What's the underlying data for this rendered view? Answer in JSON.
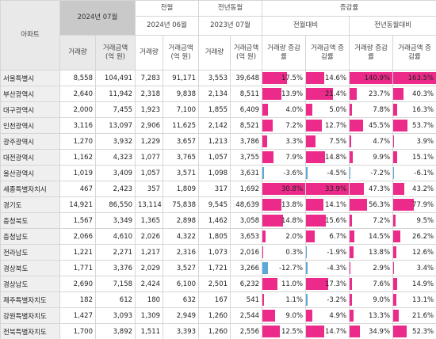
{
  "table": {
    "headers": {
      "corner": "아파트",
      "current": "2024년 07월",
      "prev": "전월",
      "prev_month": "2024년 06월",
      "last_year": "전년동월",
      "last_year_month": "2023년 07월",
      "change": "증감률",
      "vs_prev": "전월대비",
      "vs_last_year": "전년동월대비",
      "columns": [
        "거래량",
        "거래금액 (억 원)",
        "거래량",
        "거래금액 (억 원)",
        "거래량",
        "거래금액 (억 원)",
        "거래량 증감률",
        "거래금액 증감률",
        "거래량 증감률",
        "거래금액 증감률"
      ]
    },
    "rows": [
      [
        "서울특별시",
        "8,558",
        "104,491",
        "7,283",
        "91,171",
        "3,553",
        "39,648",
        "17.5%",
        "14.6%",
        "140.9%",
        "163.5%"
      ],
      [
        "부산광역시",
        "2,640",
        "11,942",
        "2,318",
        "9,838",
        "2,134",
        "8,511",
        "13.9%",
        "21.4%",
        "23.7%",
        "40.3%"
      ],
      [
        "대구광역시",
        "2,000",
        "7,455",
        "1,923",
        "7,100",
        "1,855",
        "6,409",
        "4.0%",
        "5.0%",
        "7.8%",
        "16.3%"
      ],
      [
        "인천광역시",
        "3,116",
        "13,097",
        "2,906",
        "11,625",
        "2,142",
        "8,521",
        "7.2%",
        "12.7%",
        "45.5%",
        "53.7%"
      ],
      [
        "광주광역시",
        "1,270",
        "3,932",
        "1,229",
        "3,657",
        "1,213",
        "3,786",
        "3.3%",
        "7.5%",
        "4.7%",
        "3.9%"
      ],
      [
        "대전광역시",
        "1,162",
        "4,323",
        "1,077",
        "3,765",
        "1,057",
        "3,755",
        "7.9%",
        "14.8%",
        "9.9%",
        "15.1%"
      ],
      [
        "울산광역시",
        "1,019",
        "3,409",
        "1,057",
        "3,571",
        "1,098",
        "3,631",
        "-3.6%",
        "-4.5%",
        "-7.2%",
        "-6.1%"
      ],
      [
        "세종특별자치시",
        "467",
        "2,423",
        "357",
        "1,809",
        "317",
        "1,692",
        "30.8%",
        "33.9%",
        "47.3%",
        "43.2%"
      ],
      [
        "경기도",
        "14,921",
        "86,550",
        "13,114",
        "75,838",
        "9,545",
        "48,639",
        "13.8%",
        "14.1%",
        "56.3%",
        "77.9%"
      ],
      [
        "충청북도",
        "1,567",
        "3,349",
        "1,365",
        "2,898",
        "1,462",
        "3,058",
        "14.8%",
        "15.6%",
        "7.2%",
        "9.5%"
      ],
      [
        "충청남도",
        "2,066",
        "4,610",
        "2,026",
        "4,322",
        "1,805",
        "3,653",
        "2.0%",
        "6.7%",
        "14.5%",
        "26.2%"
      ],
      [
        "전라남도",
        "1,221",
        "2,271",
        "1,217",
        "2,316",
        "1,073",
        "2,016",
        "0.3%",
        "-1.9%",
        "13.8%",
        "12.6%"
      ],
      [
        "경상북도",
        "1,771",
        "3,376",
        "2,029",
        "3,527",
        "1,721",
        "3,266",
        "-12.7%",
        "-4.3%",
        "2.9%",
        "3.4%"
      ],
      [
        "경상남도",
        "2,690",
        "7,158",
        "2,424",
        "6,100",
        "2,501",
        "6,232",
        "11.0%",
        "17.3%",
        "7.6%",
        "14.9%"
      ],
      [
        "제주특별자치도",
        "182",
        "612",
        "180",
        "632",
        "167",
        "541",
        "1.1%",
        "-3.2%",
        "9.0%",
        "13.1%"
      ],
      [
        "강원특별자치도",
        "1,427",
        "3,093",
        "1,309",
        "2,949",
        "1,260",
        "2,544",
        "9.0%",
        "4.9%",
        "13.3%",
        "21.6%"
      ],
      [
        "전북특별자치도",
        "1,700",
        "3,892",
        "1,511",
        "3,393",
        "1,260",
        "2,556",
        "12.5%",
        "14.7%",
        "34.9%",
        "52.3%"
      ]
    ]
  }
}
